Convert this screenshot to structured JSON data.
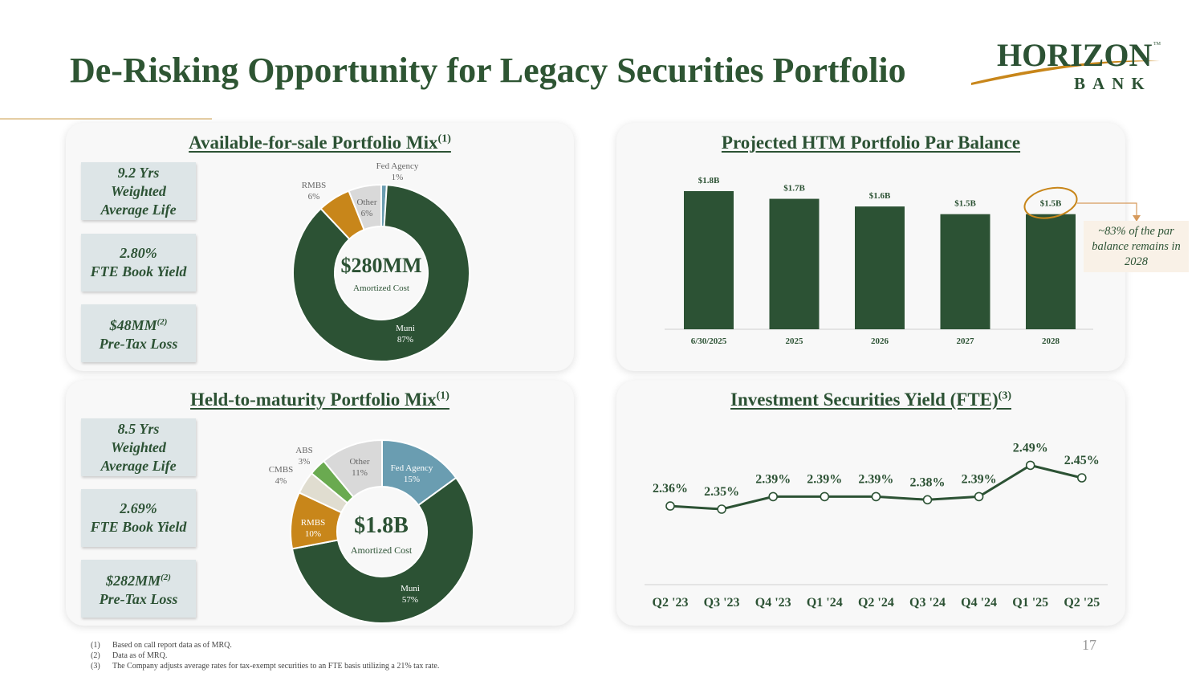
{
  "title": "De-Risking Opportunity for Legacy Securities Portfolio",
  "logo": {
    "name": "HORIZON",
    "tm": "TM",
    "sub": "BANK"
  },
  "colors": {
    "green": "#2c5234",
    "gold": "#c8861a",
    "light_gray": "#d9d9d9",
    "blue": "#6a9db1",
    "light_green": "#6aaa50",
    "beige": "#e0ddd0"
  },
  "afs": {
    "title": "Available-for-sale Portfolio Mix",
    "sup": "(1)",
    "stats": [
      {
        "line1": "9.2 Yrs",
        "line2": "Weighted",
        "line3": "Average Life"
      },
      {
        "line1": "2.80%",
        "line2": "FTE Book Yield"
      },
      {
        "line1": "$48MM",
        "sup": "(2)",
        "line2": "Pre-Tax Loss"
      }
    ],
    "center_value": "$280MM",
    "center_label": "Amortized Cost"
  },
  "htm": {
    "title": "Held-to-maturity Portfolio Mix",
    "sup": "(1)",
    "stats": [
      {
        "line1": "8.5 Yrs",
        "line2": "Weighted",
        "line3": "Average Life"
      },
      {
        "line1": "2.69%",
        "line2": "FTE Book Yield"
      },
      {
        "line1": "$282MM",
        "sup": "(2)",
        "line2": "Pre-Tax Loss"
      }
    ],
    "center_value": "$1.8B",
    "center_label": "Amortized Cost"
  },
  "par": {
    "title": "Projected HTM Portfolio Par Balance",
    "callout": "~83% of the par balance remains in 2028"
  },
  "yield": {
    "title": "Investment Securities Yield (FTE)",
    "sup": "(3)"
  },
  "footnotes": [
    {
      "num": "(1)",
      "text": "Based on call report data as of MRQ."
    },
    {
      "num": "(2)",
      "text": "Data as of MRQ."
    },
    {
      "num": "(3)",
      "text": "The Company adjusts average rates for tax-exempt securities to an FTE basis utilizing a 21% tax rate."
    }
  ],
  "page_number": "17",
  "chart_data": [
    {
      "type": "pie",
      "title": "Available-for-sale Portfolio Mix",
      "slices": [
        {
          "name": "Fed Agency",
          "label": "1%",
          "value": 1,
          "color": "#6a9db1"
        },
        {
          "name": "Muni",
          "label": "87%",
          "value": 87,
          "color": "#2c5234"
        },
        {
          "name": "RMBS",
          "label": "6%",
          "value": 6,
          "color": "#c8861a"
        },
        {
          "name": "Other",
          "label": "6%",
          "value": 6,
          "color": "#d9d9d9"
        }
      ]
    },
    {
      "type": "pie",
      "title": "Held-to-maturity Portfolio Mix",
      "slices": [
        {
          "name": "Fed Agency",
          "label": "15%",
          "value": 15,
          "color": "#6a9db1"
        },
        {
          "name": "Muni",
          "label": "57%",
          "value": 57,
          "color": "#2c5234"
        },
        {
          "name": "RMBS",
          "label": "10%",
          "value": 10,
          "color": "#c8861a"
        },
        {
          "name": "CMBS",
          "label": "4%",
          "value": 4,
          "color": "#e0ddd0"
        },
        {
          "name": "ABS",
          "label": "3%",
          "value": 3,
          "color": "#6aaa50"
        },
        {
          "name": "Other",
          "label": "11%",
          "value": 11,
          "color": "#d9d9d9"
        }
      ]
    },
    {
      "type": "bar",
      "title": "Projected HTM Portfolio Par Balance",
      "categories": [
        "6/30/2025",
        "2025",
        "2026",
        "2027",
        "2028"
      ],
      "values": [
        1.8,
        1.7,
        1.6,
        1.5,
        1.5
      ],
      "labels": [
        "$1.8B",
        "$1.7B",
        "$1.6B",
        "$1.5B",
        "$1.5B"
      ],
      "ylim": [
        0,
        1.8
      ]
    },
    {
      "type": "line",
      "title": "Investment Securities Yield (FTE)",
      "categories": [
        "Q2 '23",
        "Q3 '23",
        "Q4 '23",
        "Q1 '24",
        "Q2 '24",
        "Q3 '24",
        "Q4 '24",
        "Q1 '25",
        "Q2 '25"
      ],
      "values": [
        2.36,
        2.35,
        2.39,
        2.39,
        2.39,
        2.38,
        2.39,
        2.49,
        2.45
      ],
      "labels": [
        "2.36%",
        "2.35%",
        "2.39%",
        "2.39%",
        "2.39%",
        "2.38%",
        "2.39%",
        "2.49%",
        "2.45%"
      ]
    }
  ]
}
